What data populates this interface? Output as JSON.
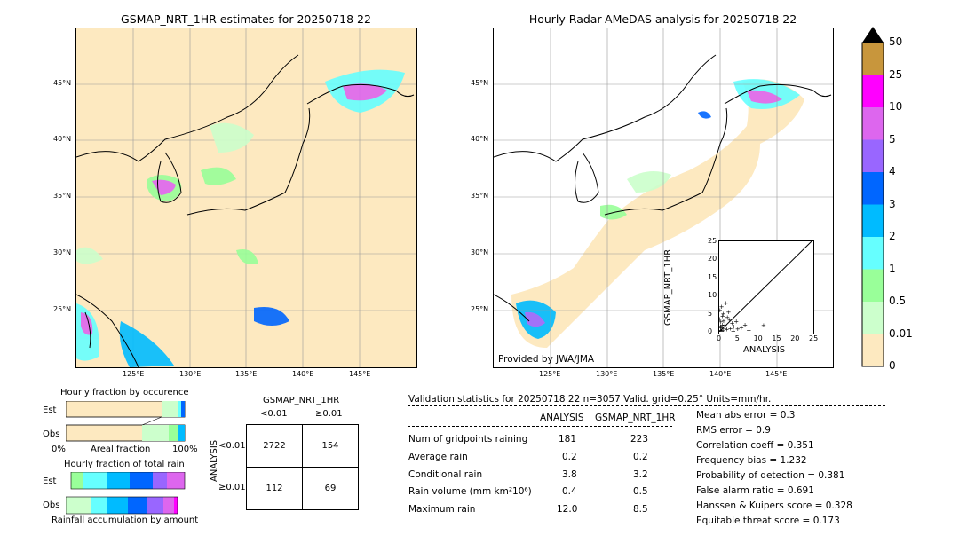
{
  "left_map": {
    "title": "GSMAP_NRT_1HR estimates for 20250718 22",
    "lat_labels": [
      "45°N",
      "40°N",
      "35°N",
      "30°N",
      "25°N"
    ],
    "lon_labels": [
      "125°E",
      "130°E",
      "135°E",
      "140°E",
      "145°E"
    ]
  },
  "right_map": {
    "title": "Hourly Radar-AMeDAS analysis for 20250718 22",
    "lat_labels": [
      "45°N",
      "40°N",
      "35°N",
      "30°N",
      "25°N"
    ],
    "lon_labels": [
      "125°E",
      "130°E",
      "135°E",
      "140°E",
      "145°E"
    ],
    "credit": "Provided by JWA/JMA"
  },
  "colorbar": {
    "labels": [
      "50",
      "25",
      "10",
      "5",
      "4",
      "3",
      "2",
      "1",
      "0.5",
      "0.01",
      "0"
    ],
    "colors": [
      "#c8963c",
      "#ff00ff",
      "#dd66ee",
      "#9966ff",
      "#0066ff",
      "#00bbff",
      "#66ffff",
      "#99ff99",
      "#ccffcc",
      "#fde9c0"
    ],
    "extend_color": "#000000"
  },
  "scatter": {
    "xlabel": "ANALYSIS",
    "ylabel": "GSMAP_NRT_1HR",
    "ticks": [
      "0",
      "5",
      "10",
      "15",
      "20",
      "25"
    ]
  },
  "fraction_occurrence": {
    "title": "Hourly fraction by occurence",
    "row_labels": [
      "Est",
      "Obs"
    ],
    "axis_left": "0%",
    "axis_mid": "Areal fraction",
    "axis_right": "100%"
  },
  "fraction_total": {
    "title": "Hourly fraction of total rain",
    "row_labels": [
      "Est",
      "Obs"
    ],
    "axis_label": "Rainfall accumulation by amount"
  },
  "contingency": {
    "title": "GSMAP_NRT_1HR",
    "col_labels": [
      "<0.01",
      "≥0.01"
    ],
    "row_axis": "ANALYSIS",
    "row_labels": [
      "<0.01",
      "≥0.01"
    ],
    "cells": [
      [
        "2722",
        "154"
      ],
      [
        "112",
        "69"
      ]
    ]
  },
  "validation": {
    "header": "Validation statistics for 20250718 22  n=3057 Valid. grid=0.25° Units=mm/hr.",
    "col_analysis": "ANALYSIS",
    "col_gsmap": "GSMAP_NRT_1HR",
    "rows": [
      {
        "label": "Num of gridpoints raining",
        "a": "181",
        "g": "223"
      },
      {
        "label": "Average rain",
        "a": "0.2",
        "g": "0.2"
      },
      {
        "label": "Conditional rain",
        "a": "3.8",
        "g": "3.2"
      },
      {
        "label": "Rain volume (mm km²10⁶)",
        "a": "0.4",
        "g": "0.5"
      },
      {
        "label": "Maximum rain",
        "a": "12.0",
        "g": "8.5"
      }
    ],
    "scores": [
      "Mean abs error =    0.3",
      "RMS error =    0.9",
      "Correlation coeff =  0.351",
      "Frequency bias =  1.232",
      "Probability of detection =  0.381",
      "False alarm ratio =  0.691",
      "Hanssen & Kuipers score =  0.328",
      "Equitable threat score =  0.173"
    ]
  },
  "chart_data": {
    "type": "scatter",
    "xlabel": "ANALYSIS",
    "ylabel": "GSMAP_NRT_1HR",
    "xlim": [
      0,
      25
    ],
    "ylim": [
      0,
      25
    ],
    "points": [
      [
        0.3,
        0.5
      ],
      [
        0.5,
        1.2
      ],
      [
        0.8,
        2.0
      ],
      [
        1.0,
        0.4
      ],
      [
        1.2,
        3.1
      ],
      [
        1.5,
        1.8
      ],
      [
        2.0,
        0.7
      ],
      [
        2.2,
        4.0
      ],
      [
        0.2,
        6.0
      ],
      [
        0.6,
        7.0
      ],
      [
        1.8,
        8.0
      ],
      [
        2.5,
        5.5
      ],
      [
        3.0,
        1.0
      ],
      [
        3.5,
        2.5
      ],
      [
        4.0,
        1.5
      ],
      [
        5.0,
        0.8
      ],
      [
        7.0,
        2.0
      ],
      [
        8.0,
        0.5
      ],
      [
        12.0,
        1.8
      ],
      [
        0.1,
        3.5
      ],
      [
        0.4,
        2.8
      ],
      [
        1.1,
        5.0
      ],
      [
        0.7,
        0.2
      ],
      [
        2.8,
        3.3
      ],
      [
        1.6,
        0.9
      ],
      [
        0.9,
        4.4
      ],
      [
        3.8,
        0.3
      ],
      [
        4.6,
        3.0
      ],
      [
        6.0,
        1.2
      ],
      [
        0.3,
        1.6
      ]
    ]
  }
}
